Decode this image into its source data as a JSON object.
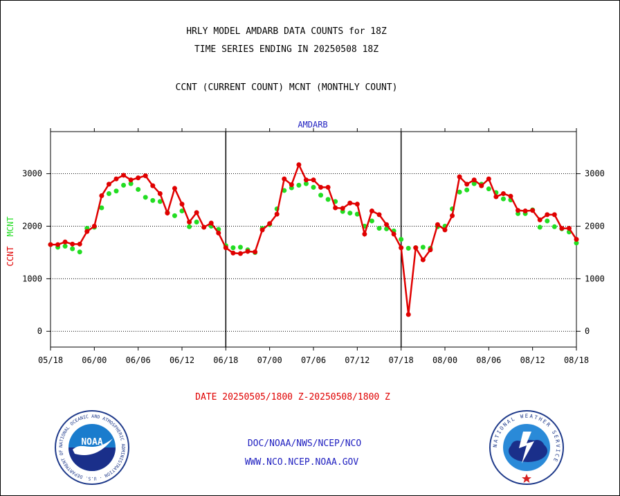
{
  "header": {
    "line1": "HRLY MODEL AMDARB DATA COUNTS for 18Z",
    "line2": "TIME SERIES ENDING IN 20250508 18Z",
    "line3": "CCNT (CURRENT COUNT) MCNT (MONTHLY COUNT)"
  },
  "footer": {
    "date_range": "DATE 20250505/1800 Z-20250508/1800 Z",
    "org_path": "DOC/NOAA/NWS/NCEP/NCO",
    "website": "WWW.NCO.NCEP.NOAA.GOV",
    "noaa_logo_text": "NOAA",
    "noaa_ring_text": "NATIONAL OCEANIC AND ATMOSPHERIC ADMINISTRATION · U.S. DEPARTMENT OF COMMERCE",
    "nws_ring_text": "NATIONAL WEATHER SERVICE"
  },
  "colors": {
    "ccnt": "#e00000",
    "mcnt": "#22dd22",
    "title_blue": "#2020c0",
    "date_red": "#e00000"
  },
  "chart_data": {
    "type": "line",
    "title": "AMDARB",
    "ylabel_left_1": "CCNT",
    "ylabel_left_2": "MCNT",
    "ylim": [
      -300,
      3800
    ],
    "yticks": [
      0,
      1000,
      2000,
      3000
    ],
    "xticks": [
      "05/18",
      "06/00",
      "06/06",
      "06/12",
      "06/18",
      "07/00",
      "07/06",
      "07/12",
      "07/18",
      "08/00",
      "08/06",
      "08/12",
      "08/18"
    ],
    "x_start_hour": 0,
    "x_end_hour": 72,
    "grid": true,
    "series": [
      {
        "name": "CCNT",
        "values": [
          1650,
          1650,
          1700,
          1660,
          1660,
          1900,
          2000,
          2580,
          2800,
          2900,
          2970,
          2880,
          2920,
          2960,
          2770,
          2620,
          2250,
          2720,
          2420,
          2080,
          2260,
          1980,
          2060,
          1870,
          1590,
          1490,
          1480,
          1520,
          1510,
          1930,
          2050,
          2230,
          2900,
          2790,
          3170,
          2880,
          2880,
          2740,
          2740,
          2350,
          2340,
          2440,
          2420,
          1850,
          2290,
          2220,
          2030,
          1850,
          1590,
          320,
          1590,
          1360,
          1550,
          2030,
          1930,
          2200,
          2940,
          2800,
          2880,
          2770,
          2900,
          2560,
          2620,
          2570,
          2300,
          2290,
          2300,
          2120,
          2220,
          2220,
          1960,
          1960,
          1750
        ]
      },
      {
        "name": "MCNT",
        "values": [
          1650,
          1600,
          1620,
          1570,
          1510,
          1960,
          1980,
          2350,
          2620,
          2670,
          2780,
          2810,
          2700,
          2550,
          2490,
          2470,
          2260,
          2200,
          2290,
          1990,
          2080,
          1980,
          2000,
          1940,
          1630,
          1590,
          1600,
          1550,
          1500,
          1960,
          2030,
          2330,
          2680,
          2730,
          2780,
          2810,
          2740,
          2590,
          2510,
          2470,
          2280,
          2250,
          2230,
          2000,
          2100,
          1960,
          1950,
          1910,
          1750,
          1580,
          1590,
          1600,
          1580,
          1990,
          2000,
          2330,
          2650,
          2690,
          2810,
          2800,
          2710,
          2640,
          2520,
          2500,
          2240,
          2240,
          2310,
          1980,
          2100,
          1990,
          1950,
          1890,
          1680
        ]
      }
    ]
  }
}
